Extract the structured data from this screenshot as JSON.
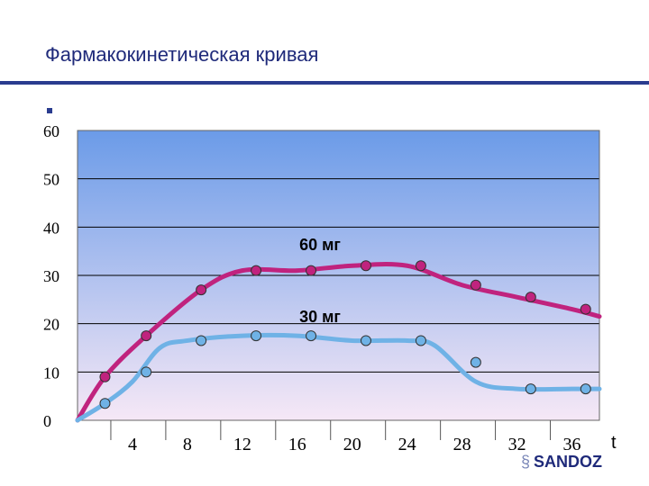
{
  "slide": {
    "title": "Фармакокинетическая кривая",
    "logo_text": "SANDOZ"
  },
  "colors": {
    "title": "#1f2a7a",
    "rule": "#2a3c8f",
    "plot_top": "#6b9be8",
    "plot_bottom": "#f6e8f6",
    "grid": "#000000",
    "series_60": "#c0237e",
    "series_30": "#6fb2e6"
  },
  "chart_data": {
    "type": "line",
    "title": "",
    "xlabel": "t",
    "ylabel": "",
    "xlim": [
      0,
      38
    ],
    "ylim": [
      0,
      60
    ],
    "grid": true,
    "x_ticks": [
      4,
      8,
      12,
      16,
      20,
      24,
      28,
      32,
      36
    ],
    "x_tick_labels": [
      "4",
      "8",
      "12",
      "16",
      "20",
      "24",
      "28",
      "32",
      "36"
    ],
    "y_ticks": [
      0,
      10,
      20,
      30,
      40,
      50,
      60
    ],
    "y_tick_labels": [
      "0",
      "10",
      "20",
      "30",
      "40",
      "50",
      "60"
    ],
    "series": [
      {
        "name": "60 мг",
        "color": "#c0237e",
        "curve_x": [
          0,
          2,
          5,
          9,
          12,
          16,
          20,
          24,
          28,
          32,
          36,
          38
        ],
        "curve_y": [
          0,
          9,
          17.5,
          27,
          31,
          31,
          32,
          32,
          28,
          25.5,
          23,
          21.5
        ],
        "marker_x": [
          2,
          5,
          9,
          13,
          17,
          21,
          25,
          29,
          33,
          37
        ],
        "marker_y": [
          9,
          17.5,
          27,
          31,
          31,
          32,
          32,
          28,
          25.5,
          23
        ]
      },
      {
        "name": "30 мг",
        "color": "#6fb2e6",
        "curve_x": [
          0,
          2,
          4,
          6,
          8,
          12,
          16,
          20,
          24,
          26,
          29,
          32,
          36,
          38
        ],
        "curve_y": [
          0,
          3.5,
          8,
          15,
          16.5,
          17.5,
          17.5,
          16.5,
          16.5,
          15.5,
          8,
          6.5,
          6.5,
          6.5
        ],
        "marker_x": [
          2,
          5,
          9,
          13,
          17,
          21,
          25,
          29,
          33,
          37
        ],
        "marker_y": [
          3.5,
          10,
          16.5,
          17.5,
          17.5,
          16.5,
          16.5,
          12,
          6.5,
          6.5
        ]
      }
    ]
  }
}
